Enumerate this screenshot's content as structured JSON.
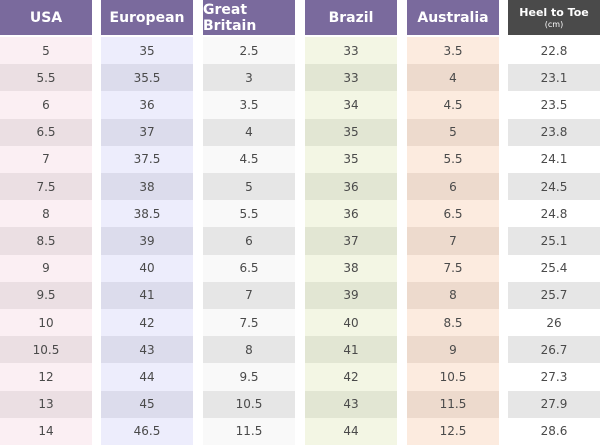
{
  "table": {
    "headers": [
      "USA",
      "European",
      "Great Britain",
      "Brazil",
      "Australia",
      "Heel to Toe"
    ],
    "header_note": "(cm)",
    "rows": [
      [
        "5",
        "35",
        "2.5",
        "33",
        "3.5",
        "22.8"
      ],
      [
        "5.5",
        "35.5",
        "3",
        "33",
        "4",
        "23.1"
      ],
      [
        "6",
        "36",
        "3.5",
        "34",
        "4.5",
        "23.5"
      ],
      [
        "6.5",
        "37",
        "4",
        "35",
        "5",
        "23.8"
      ],
      [
        "7",
        "37.5",
        "4.5",
        "35",
        "5.5",
        "24.1"
      ],
      [
        "7.5",
        "38",
        "5",
        "36",
        "6",
        "24.5"
      ],
      [
        "8",
        "38.5",
        "5.5",
        "36",
        "6.5",
        "24.8"
      ],
      [
        "8.5",
        "39",
        "6",
        "37",
        "7",
        "25.1"
      ],
      [
        "9",
        "40",
        "6.5",
        "38",
        "7.5",
        "25.4"
      ],
      [
        "9.5",
        "41",
        "7",
        "39",
        "8",
        "25.7"
      ],
      [
        "10",
        "42",
        "7.5",
        "40",
        "8.5",
        "26"
      ],
      [
        "10.5",
        "43",
        "8",
        "41",
        "9",
        "26.7"
      ],
      [
        "12",
        "44",
        "9.5",
        "42",
        "10.5",
        "27.3"
      ],
      [
        "13",
        "45",
        "10.5",
        "43",
        "11.5",
        "27.9"
      ],
      [
        "14",
        "46.5",
        "11.5",
        "44",
        "12.5",
        "28.6"
      ]
    ]
  }
}
